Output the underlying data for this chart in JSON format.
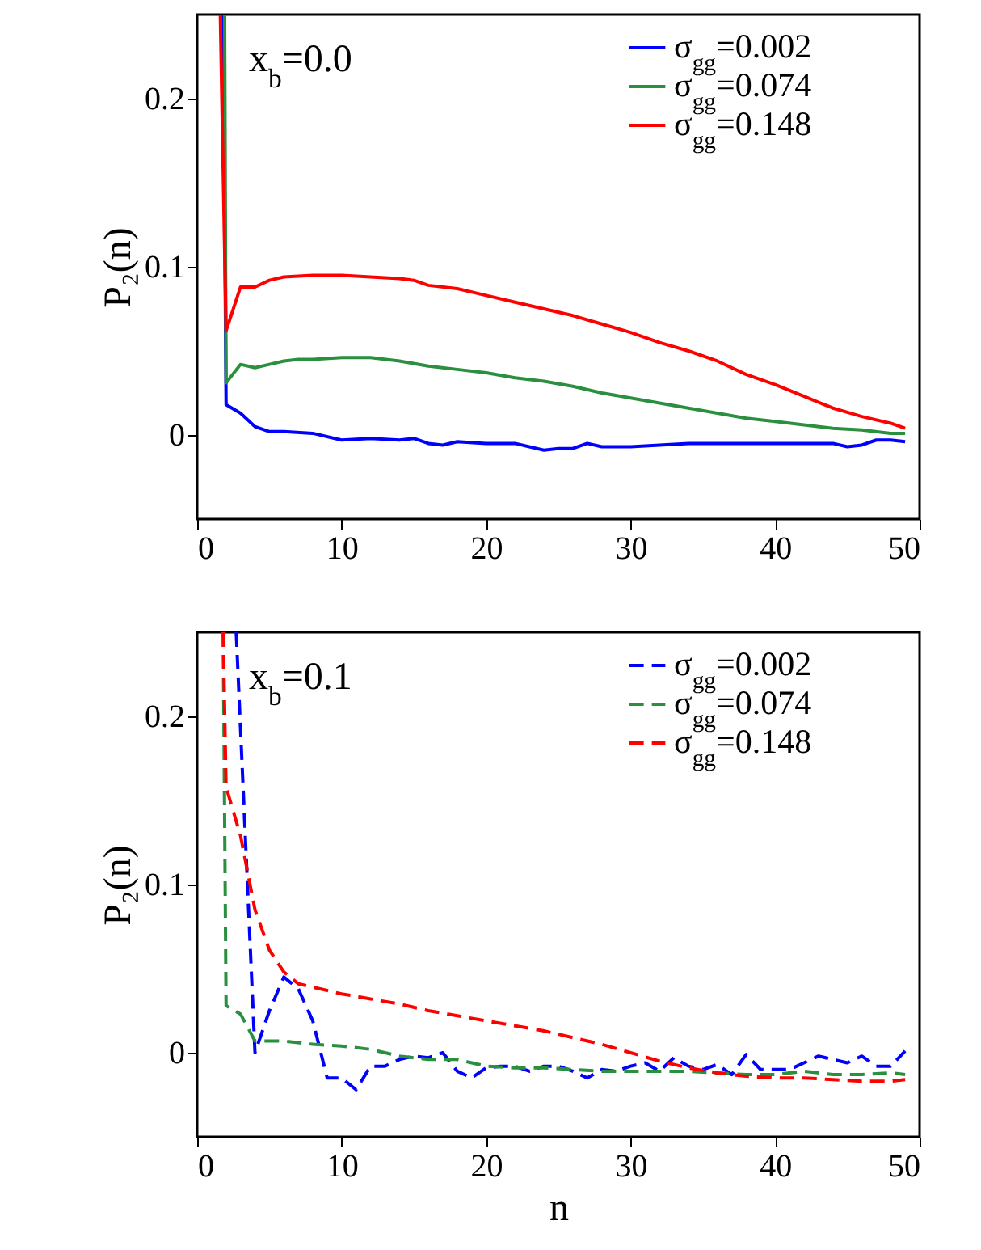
{
  "chart_data": [
    {
      "type": "line",
      "ylabel": "P₂(n)",
      "annotations": [
        "x$_{b}$=0.0"
      ],
      "xlim": [
        0,
        50
      ],
      "xticks": [
        0,
        10,
        20,
        30,
        40,
        50
      ],
      "ylim": [
        -0.05,
        0.25
      ],
      "yticks": [
        0,
        0.1,
        0.2
      ],
      "legend": "top right",
      "line_style": "solid",
      "series": [
        {
          "name": "σ$_{gg}$=0.002",
          "color": "#0000ff",
          "x": [
            1.8,
            2,
            3,
            4,
            5,
            6,
            8,
            10,
            12,
            14,
            15,
            16,
            17,
            18,
            20,
            22,
            24,
            25,
            26,
            27,
            28,
            30,
            32,
            34,
            36,
            38,
            40,
            42,
            44,
            45,
            46,
            47,
            48,
            49
          ],
          "values": [
            0.25,
            0.018,
            0.013,
            0.005,
            0.002,
            0.002,
            0.001,
            -0.003,
            -0.002,
            -0.003,
            -0.002,
            -0.005,
            -0.006,
            -0.004,
            -0.005,
            -0.005,
            -0.009,
            -0.008,
            -0.008,
            -0.005,
            -0.007,
            -0.007,
            -0.006,
            -0.005,
            -0.005,
            -0.005,
            -0.005,
            -0.005,
            -0.005,
            -0.007,
            -0.006,
            -0.003,
            -0.003,
            -0.004
          ]
        },
        {
          "name": "σ$_{gg}$=0.074",
          "color": "#2a9040",
          "x": [
            1.9,
            2,
            3,
            4,
            5,
            6,
            7,
            8,
            10,
            12,
            14,
            16,
            18,
            20,
            22,
            24,
            26,
            28,
            30,
            32,
            34,
            36,
            38,
            40,
            42,
            44,
            46,
            48,
            49
          ],
          "values": [
            0.25,
            0.031,
            0.042,
            0.04,
            0.042,
            0.044,
            0.045,
            0.045,
            0.046,
            0.046,
            0.044,
            0.041,
            0.039,
            0.037,
            0.034,
            0.032,
            0.029,
            0.025,
            0.022,
            0.019,
            0.016,
            0.013,
            0.01,
            0.008,
            0.006,
            0.004,
            0.003,
            0.001,
            0.001
          ]
        },
        {
          "name": "σ$_{gg}$=0.148",
          "color": "#ff0000",
          "x": [
            1.6,
            2,
            3,
            4,
            5,
            6,
            8,
            10,
            12,
            14,
            15,
            16,
            18,
            20,
            22,
            24,
            26,
            28,
            30,
            32,
            34,
            36,
            38,
            40,
            42,
            44,
            46,
            48,
            49
          ],
          "values": [
            0.25,
            0.062,
            0.088,
            0.088,
            0.092,
            0.094,
            0.095,
            0.095,
            0.094,
            0.093,
            0.092,
            0.089,
            0.087,
            0.083,
            0.079,
            0.075,
            0.071,
            0.066,
            0.061,
            0.055,
            0.05,
            0.044,
            0.036,
            0.03,
            0.023,
            0.016,
            0.011,
            0.007,
            0.004
          ]
        }
      ]
    },
    {
      "type": "line",
      "xlabel": "n",
      "ylabel": "P₂(n)",
      "annotations": [
        "x$_{b}$=0.1"
      ],
      "xlim": [
        0,
        50
      ],
      "xticks": [
        0,
        10,
        20,
        30,
        40,
        50
      ],
      "ylim": [
        -0.05,
        0.25
      ],
      "yticks": [
        0,
        0.1,
        0.2
      ],
      "legend": "top right",
      "line_style": "dashed",
      "series": [
        {
          "name": "σ$_{gg}$=0.002",
          "color": "#0000ff",
          "x": [
            2.7,
            4,
            5,
            6,
            7,
            8,
            9,
            10,
            11,
            12,
            13,
            14,
            15,
            16,
            17,
            18,
            19,
            20,
            21,
            22,
            23,
            24,
            25,
            26,
            27,
            28,
            29,
            30,
            31,
            32,
            33,
            34,
            35,
            36,
            37,
            38,
            39,
            40,
            41,
            42,
            43,
            44,
            45,
            46,
            47,
            48,
            49
          ],
          "values": [
            0.25,
            0.0,
            0.025,
            0.045,
            0.038,
            0.019,
            -0.015,
            -0.015,
            -0.022,
            -0.008,
            -0.008,
            -0.004,
            -0.002,
            -0.003,
            0.0,
            -0.011,
            -0.015,
            -0.009,
            -0.008,
            -0.008,
            -0.011,
            -0.008,
            -0.008,
            -0.011,
            -0.015,
            -0.01,
            -0.011,
            -0.008,
            -0.006,
            -0.011,
            -0.003,
            -0.008,
            -0.01,
            -0.007,
            -0.013,
            -0.001,
            -0.01,
            -0.01,
            -0.01,
            -0.006,
            -0.002,
            -0.004,
            -0.006,
            -0.002,
            -0.008,
            -0.008,
            0.001
          ]
        },
        {
          "name": "σ$_{gg}$=0.074",
          "color": "#2a9040",
          "x": [
            1.8,
            2,
            3,
            4,
            5,
            6,
            8,
            10,
            12,
            14,
            16,
            18,
            20,
            22,
            24,
            26,
            28,
            30,
            32,
            34,
            36,
            38,
            40,
            42,
            44,
            46,
            48,
            49
          ],
          "values": [
            0.25,
            0.028,
            0.023,
            0.007,
            0.007,
            0.007,
            0.005,
            0.004,
            0.002,
            -0.002,
            -0.004,
            -0.004,
            -0.008,
            -0.009,
            -0.009,
            -0.01,
            -0.011,
            -0.011,
            -0.011,
            -0.011,
            -0.012,
            -0.013,
            -0.013,
            -0.011,
            -0.013,
            -0.013,
            -0.012,
            -0.013
          ]
        },
        {
          "name": "σ$_{gg}$=0.148",
          "color": "#ff0000",
          "x": [
            1.8,
            2,
            3,
            4,
            5,
            6,
            7,
            8,
            10,
            12,
            14,
            16,
            18,
            20,
            22,
            24,
            26,
            28,
            30,
            32,
            34,
            36,
            38,
            40,
            42,
            44,
            46,
            48,
            49
          ],
          "values": [
            0.25,
            0.158,
            0.129,
            0.085,
            0.061,
            0.048,
            0.041,
            0.039,
            0.035,
            0.032,
            0.029,
            0.025,
            0.022,
            0.019,
            0.016,
            0.013,
            0.009,
            0.005,
            0.0,
            -0.005,
            -0.009,
            -0.012,
            -0.014,
            -0.015,
            -0.015,
            -0.016,
            -0.017,
            -0.017,
            -0.016
          ]
        }
      ]
    }
  ]
}
